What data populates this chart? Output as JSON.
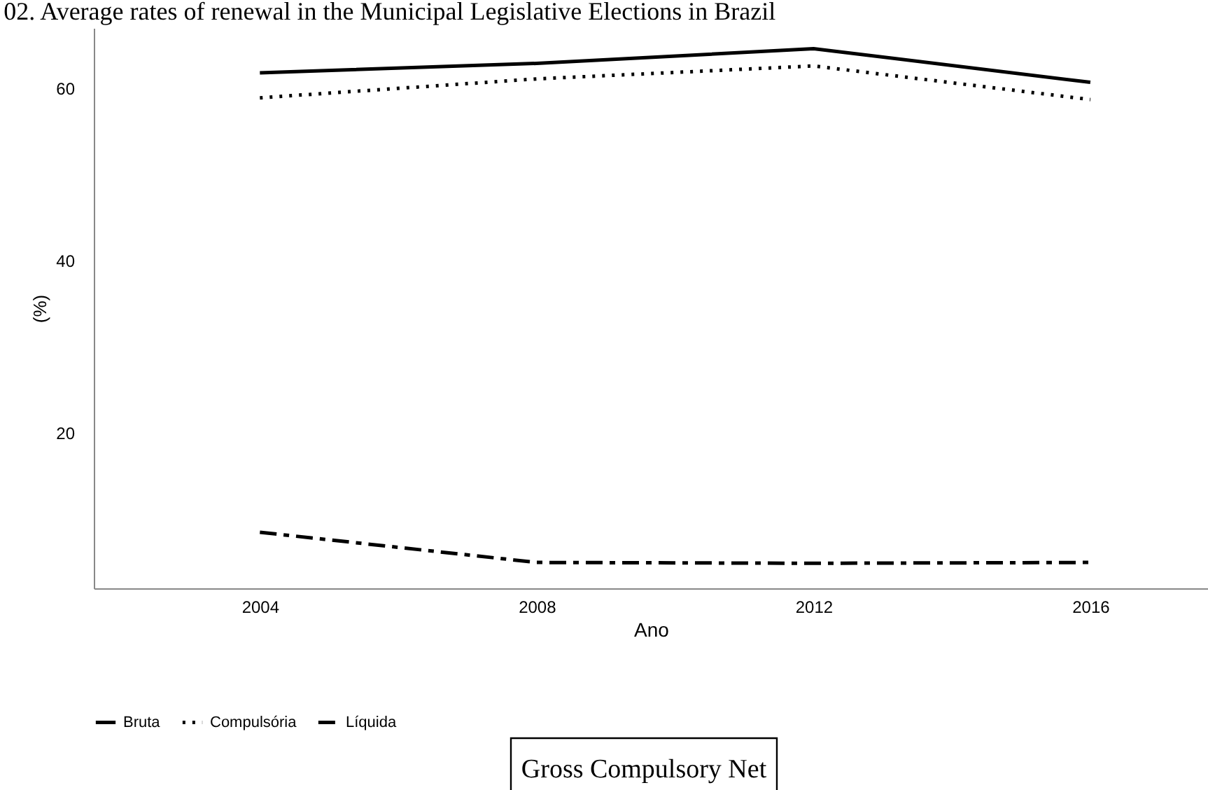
{
  "chart_data": {
    "type": "line",
    "title": "02. Average rates of renewal in the Municipal Legislative Elections in Brazil",
    "xlabel": "Ano",
    "ylabel": "(%)",
    "x": [
      2004,
      2008,
      2012,
      2016
    ],
    "xlim": [
      2001.6,
      2017.7
    ],
    "xticks": [
      2004,
      2008,
      2012,
      2016
    ],
    "ylim": [
      2,
      67
    ],
    "yticks": [
      20,
      40,
      60
    ],
    "series": [
      {
        "name": "Bruta",
        "color": "#000000",
        "line_style": "solid",
        "values": [
          61.8,
          62.9,
          64.6,
          60.7
        ]
      },
      {
        "name": "Compulsória",
        "color": "#000000",
        "line_style": "dotted",
        "values": [
          58.9,
          61.1,
          62.6,
          58.7
        ]
      },
      {
        "name": "Líquida",
        "color": "#000000",
        "line_style": "dashed",
        "values": [
          8.5,
          5.0,
          4.9,
          5.0
        ]
      }
    ],
    "grid": false,
    "legend": "bottom",
    "marker": "none",
    "annotations": [
      "Gross Compulsory Net"
    ]
  }
}
